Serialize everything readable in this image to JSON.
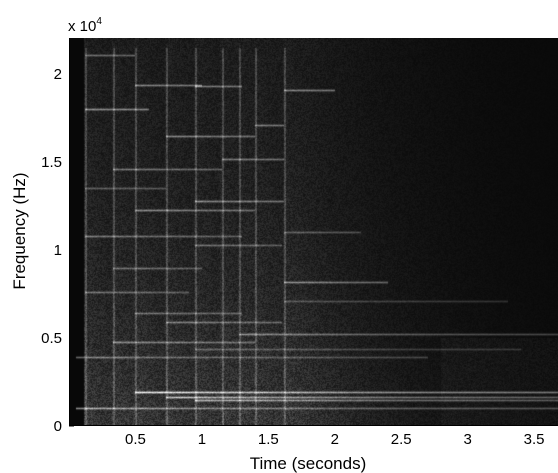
{
  "chart_data": {
    "type": "heatmap",
    "title": "",
    "xlabel": "Time (seconds)",
    "ylabel": "Frequency (Hz)",
    "xlim": [
      0.0,
      3.68
    ],
    "ylim": [
      0,
      22050
    ],
    "x_ticks": [
      0.5,
      1,
      1.5,
      2,
      2.5,
      3,
      3.5
    ],
    "x_tick_labels": [
      "0.5",
      "1",
      "1.5",
      "2",
      "2.5",
      "3",
      "3.5"
    ],
    "y_ticks": [
      0,
      5000,
      10000,
      15000,
      20000
    ],
    "y_tick_labels": [
      "0",
      "0.5",
      "1",
      "1.5",
      "2"
    ],
    "y_multiplier_base": "x 10",
    "y_multiplier_exp": "4",
    "colormap": "grayscale",
    "onsets_seconds": [
      0.12,
      0.33,
      0.5,
      0.73,
      0.95,
      1.15,
      1.28,
      1.4,
      1.62
    ],
    "partials": [
      {
        "start": 0.05,
        "end": 3.68,
        "freq": 1000,
        "level": 0.55
      },
      {
        "start": 0.5,
        "end": 3.68,
        "freq": 1950,
        "level": 0.85
      },
      {
        "start": 0.73,
        "end": 3.68,
        "freq": 1650,
        "level": 0.65
      },
      {
        "start": 0.95,
        "end": 3.68,
        "freq": 1450,
        "level": 0.6
      },
      {
        "start": 0.05,
        "end": 2.7,
        "freq": 3900,
        "level": 0.4
      },
      {
        "start": 0.33,
        "end": 1.4,
        "freq": 4800,
        "level": 0.45
      },
      {
        "start": 1.28,
        "end": 3.68,
        "freq": 5250,
        "level": 0.45
      },
      {
        "start": 0.95,
        "end": 3.4,
        "freq": 4400,
        "level": 0.3
      },
      {
        "start": 0.73,
        "end": 1.6,
        "freq": 5900,
        "level": 0.4
      },
      {
        "start": 0.5,
        "end": 1.3,
        "freq": 6400,
        "level": 0.35
      },
      {
        "start": 0.12,
        "end": 0.9,
        "freq": 7600,
        "level": 0.35
      },
      {
        "start": 1.62,
        "end": 3.3,
        "freq": 7100,
        "level": 0.25
      },
      {
        "start": 1.62,
        "end": 2.4,
        "freq": 8200,
        "level": 0.45
      },
      {
        "start": 0.33,
        "end": 1.0,
        "freq": 9000,
        "level": 0.35
      },
      {
        "start": 0.95,
        "end": 1.6,
        "freq": 10300,
        "level": 0.35
      },
      {
        "start": 0.12,
        "end": 1.3,
        "freq": 10800,
        "level": 0.4
      },
      {
        "start": 1.62,
        "end": 2.2,
        "freq": 11000,
        "level": 0.3
      },
      {
        "start": 0.5,
        "end": 1.4,
        "freq": 12300,
        "level": 0.45
      },
      {
        "start": 0.95,
        "end": 1.62,
        "freq": 12800,
        "level": 0.45
      },
      {
        "start": 0.12,
        "end": 0.73,
        "freq": 13500,
        "level": 0.3
      },
      {
        "start": 0.33,
        "end": 1.15,
        "freq": 14600,
        "level": 0.4
      },
      {
        "start": 1.15,
        "end": 1.62,
        "freq": 15200,
        "level": 0.4
      },
      {
        "start": 0.73,
        "end": 1.4,
        "freq": 16500,
        "level": 0.45
      },
      {
        "start": 0.12,
        "end": 0.6,
        "freq": 18000,
        "level": 0.5
      },
      {
        "start": 0.5,
        "end": 1.0,
        "freq": 19400,
        "level": 0.45
      },
      {
        "start": 0.95,
        "end": 1.3,
        "freq": 19300,
        "level": 0.4
      },
      {
        "start": 1.62,
        "end": 2.0,
        "freq": 19100,
        "level": 0.45
      },
      {
        "start": 0.12,
        "end": 0.5,
        "freq": 21100,
        "level": 0.35
      },
      {
        "start": 1.4,
        "end": 1.62,
        "freq": 17100,
        "level": 0.4
      }
    ]
  }
}
